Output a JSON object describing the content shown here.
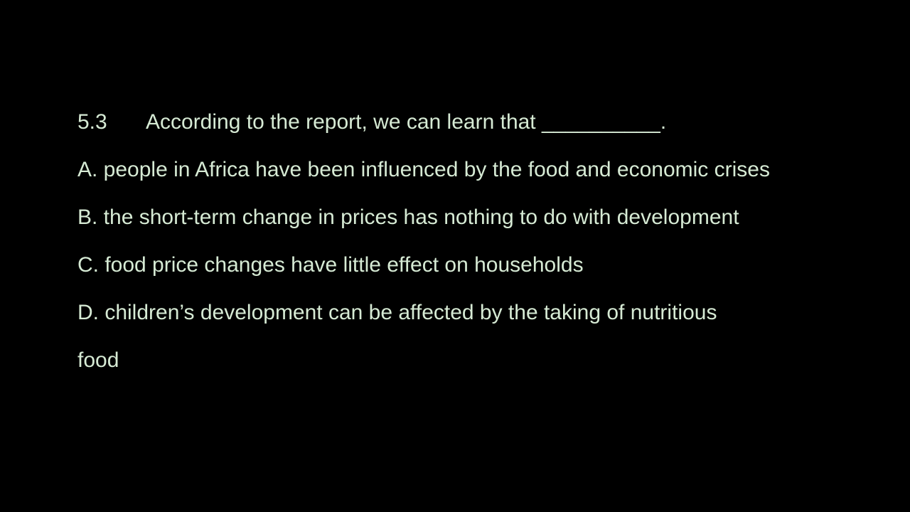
{
  "question": {
    "number": "5.3",
    "stem": "According to the report, we can learn that __________."
  },
  "options": [
    {
      "text": "A. people in Africa have been influenced by the food and economic crises"
    },
    {
      "text": "B. the short-term change in prices has nothing to do with development"
    },
    {
      "text": "C. food price changes have little effect on households"
    },
    {
      "text": "D. children’s development can be affected by the taking of nutritious"
    },
    {
      "text": "food"
    }
  ],
  "colors": {
    "background": "#000000",
    "text": "#d6ead4"
  }
}
